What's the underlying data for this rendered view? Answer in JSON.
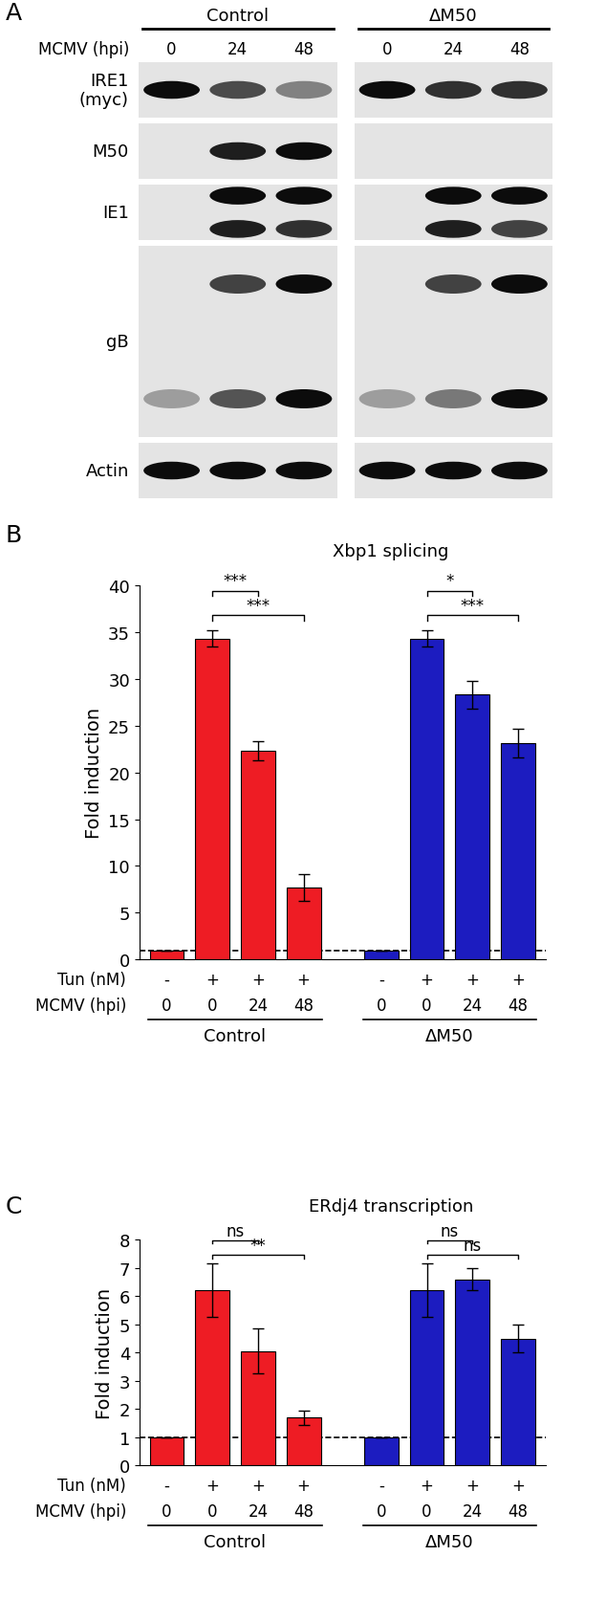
{
  "chart_data": [
    {
      "type": "western_blot",
      "panel": "A",
      "groups": [
        "Control",
        "ΔM50"
      ],
      "lane_header": {
        "label": "MCMV (hpi)",
        "values": [
          0,
          24,
          48,
          0,
          24,
          48
        ]
      },
      "rows": [
        {
          "label": "IRE1\n(myc)",
          "bands": [
            [
              1.0,
              0.65,
              0.35,
              1.0,
              0.8,
              0.8
            ]
          ]
        },
        {
          "label": "M50",
          "bands": [
            [
              0.0,
              0.9,
              1.0,
              0.0,
              0.0,
              0.0
            ]
          ]
        },
        {
          "label": "IE1",
          "bands": [
            [
              0.0,
              1.0,
              1.0,
              0.0,
              1.0,
              1.0
            ],
            [
              0.0,
              0.9,
              0.8,
              0.0,
              0.9,
              0.7
            ]
          ]
        },
        {
          "label": "gB",
          "bands": [
            [
              0.0,
              0.7,
              1.0,
              0.0,
              0.7,
              1.0
            ],
            [
              0.2,
              0.6,
              1.0,
              0.2,
              0.4,
              1.0
            ]
          ]
        },
        {
          "label": "Actin",
          "bands": [
            [
              1.0,
              1.0,
              1.0,
              1.0,
              1.0,
              1.0
            ]
          ]
        }
      ]
    },
    {
      "type": "bar",
      "panel": "B",
      "title": "Xbp1 splicing",
      "y_label": "Fold induction",
      "ylim": [
        0,
        40
      ],
      "yticks": [
        0,
        5,
        10,
        15,
        20,
        25,
        30,
        35,
        40
      ],
      "baseline": 1,
      "x_rows": [
        {
          "label": "Tun (nM)",
          "values": [
            "-",
            "+",
            "+",
            "+"
          ]
        },
        {
          "label": "MCMV (hpi)",
          "values": [
            0,
            0,
            24,
            48
          ]
        }
      ],
      "series": [
        {
          "name": "Control",
          "color": "#ee1c24",
          "values": [
            1,
            34.3,
            22.3,
            7.7
          ],
          "errors": [
            0,
            0.9,
            1.0,
            1.4
          ],
          "significance": [
            {
              "from": 1,
              "to": 2,
              "text": "***"
            },
            {
              "from": 1,
              "to": 3,
              "text": "***"
            }
          ]
        },
        {
          "name": "ΔM50",
          "color": "#1c1cc0",
          "values": [
            1,
            34.3,
            28.3,
            23.1
          ],
          "errors": [
            0,
            0.9,
            1.5,
            1.5
          ],
          "significance": [
            {
              "from": 1,
              "to": 2,
              "text": "*"
            },
            {
              "from": 1,
              "to": 3,
              "text": "***"
            }
          ]
        }
      ]
    },
    {
      "type": "bar",
      "panel": "C",
      "title": "ERdj4 transcription",
      "y_label": "Fold induction",
      "ylim": [
        0,
        8
      ],
      "yticks": [
        0,
        1,
        2,
        3,
        4,
        5,
        6,
        7,
        8
      ],
      "baseline": 1,
      "x_rows": [
        {
          "label": "Tun (nM)",
          "values": [
            "-",
            "+",
            "+",
            "+"
          ]
        },
        {
          "label": "MCMV (hpi)",
          "values": [
            0,
            0,
            24,
            48
          ]
        }
      ],
      "series": [
        {
          "name": "Control",
          "color": "#ee1c24",
          "values": [
            1,
            6.2,
            4.05,
            1.7
          ],
          "errors": [
            0,
            0.95,
            0.8,
            0.25
          ],
          "significance": [
            {
              "from": 1,
              "to": 2,
              "text": "ns"
            },
            {
              "from": 1,
              "to": 3,
              "text": "**"
            }
          ]
        },
        {
          "name": "ΔM50",
          "color": "#1c1cc0",
          "values": [
            1,
            6.2,
            6.6,
            4.5
          ],
          "errors": [
            0,
            0.95,
            0.4,
            0.5
          ],
          "significance": [
            {
              "from": 1,
              "to": 2,
              "text": "ns"
            },
            {
              "from": 1,
              "to": 3,
              "text": "ns"
            }
          ]
        }
      ]
    }
  ]
}
